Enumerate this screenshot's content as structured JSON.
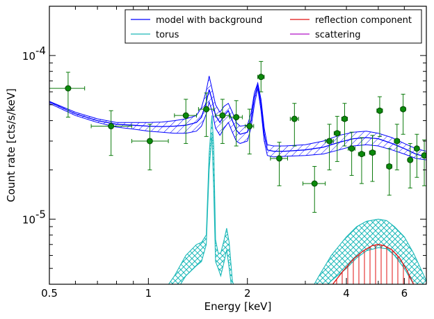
{
  "chart_data": {
    "type": "scatter",
    "title": "",
    "xlabel": "Energy [keV]",
    "ylabel": "Count rate [cts/s/keV]",
    "xscale": "log",
    "yscale": "log",
    "xlim": [
      0.5,
      7.0
    ],
    "ylim": [
      4e-06,
      0.0002
    ],
    "x_ticks": [
      {
        "value": 0.5,
        "label": "0.5"
      },
      {
        "value": 1,
        "label": "1"
      },
      {
        "value": 2,
        "label": "2"
      },
      {
        "value": 4,
        "label": "4"
      },
      {
        "value": 6,
        "label": "6"
      }
    ],
    "y_ticks": [
      {
        "value": 1e-05,
        "label": "10",
        "exp": "-5"
      },
      {
        "value": 0.0001,
        "label": "10",
        "exp": "-4"
      }
    ],
    "grid": false,
    "legend_position": "top-right",
    "legend_columns": 2,
    "colors": {
      "model": "#0000ff",
      "torus": "#1ab8b8",
      "reflection": "#e01010",
      "scattering": "#b010c8",
      "data": "#0a7a0a",
      "data_fill": "#0a8a0a"
    },
    "series": [
      {
        "name": "model with background",
        "kind": "line-band",
        "color": "#0000ff",
        "x": [
          0.5,
          0.6,
          0.7,
          0.8,
          0.9,
          1.0,
          1.1,
          1.2,
          1.3,
          1.4,
          1.45,
          1.5,
          1.53,
          1.56,
          1.6,
          1.65,
          1.7,
          1.75,
          1.8,
          1.85,
          1.9,
          2.0,
          2.05,
          2.1,
          2.15,
          2.2,
          2.25,
          2.3,
          2.4,
          2.6,
          3.0,
          3.4,
          3.8,
          4.2,
          4.6,
          5.0,
          5.5,
          6.0,
          6.5,
          7.0
        ],
        "values": [
          5.2e-05,
          4.4e-05,
          4e-05,
          3.8e-05,
          3.75e-05,
          3.7e-05,
          3.68e-05,
          3.7e-05,
          3.75e-05,
          3.9e-05,
          4.2e-05,
          5.2e-05,
          6.2e-05,
          5.4e-05,
          4.3e-05,
          3.9e-05,
          4.3e-05,
          4.6e-05,
          4e-05,
          3.5e-05,
          3.3e-05,
          3.4e-05,
          4e-05,
          5.5e-05,
          6.6e-05,
          5e-05,
          3.3e-05,
          2.65e-05,
          2.6e-05,
          2.6e-05,
          2.65e-05,
          2.75e-05,
          2.95e-05,
          3.1e-05,
          3.15e-05,
          3.1e-05,
          2.9e-05,
          2.7e-05,
          2.5e-05,
          2.4e-05
        ],
        "lower": [
          5.1e-05,
          4.3e-05,
          3.9e-05,
          3.65e-05,
          3.55e-05,
          3.45e-05,
          3.4e-05,
          3.35e-05,
          3.35e-05,
          3.45e-05,
          3.7e-05,
          4.4e-05,
          5.2e-05,
          4.6e-05,
          3.6e-05,
          3.25e-05,
          3.6e-05,
          3.9e-05,
          3.4e-05,
          3e-05,
          2.9e-05,
          3e-05,
          3.6e-05,
          5e-05,
          6.3e-05,
          4.6e-05,
          3e-05,
          2.45e-05,
          2.4e-05,
          2.42e-05,
          2.45e-05,
          2.5e-05,
          2.65e-05,
          2.8e-05,
          2.85e-05,
          2.8e-05,
          2.65e-05,
          2.5e-05,
          2.35e-05,
          2.3e-05
        ],
        "upper": [
          5.25e-05,
          4.5e-05,
          4.1e-05,
          3.9e-05,
          3.9e-05,
          3.9e-05,
          3.92e-05,
          4e-05,
          4.1e-05,
          4.3e-05,
          4.8e-05,
          6.1e-05,
          7.5e-05,
          6.3e-05,
          5e-05,
          4.5e-05,
          4.9e-05,
          5.1e-05,
          4.5e-05,
          3.9e-05,
          3.7e-05,
          3.75e-05,
          4.4e-05,
          5.9e-05,
          6.8e-05,
          5.4e-05,
          3.6e-05,
          2.85e-05,
          2.8e-05,
          2.8e-05,
          2.85e-05,
          3e-05,
          3.25e-05,
          3.4e-05,
          3.45e-05,
          3.35e-05,
          3.15e-05,
          2.9e-05,
          2.7e-05,
          2.6e-05
        ]
      },
      {
        "name": "torus",
        "kind": "band",
        "color": "#1ab8b8",
        "segments": [
          {
            "x": [
              1.1,
              1.2,
              1.3,
              1.4,
              1.45,
              1.5,
              1.53,
              1.56,
              1.58,
              1.6,
              1.63,
              1.66,
              1.7,
              1.73,
              1.76,
              1.8,
              1.85,
              1.9
            ],
            "lower": [
              3e-06,
              3.5e-06,
              4.5e-06,
              5.2e-06,
              5.5e-06,
              7e-06,
              2e-05,
              3.3e-05,
              1.5e-05,
              5.5e-06,
              5e-06,
              4.5e-06,
              5.5e-06,
              6.5e-06,
              5e-06,
              3.5e-06,
              3e-06,
              3e-06
            ],
            "upper": [
              3.5e-06,
              4.5e-06,
              6e-06,
              7e-06,
              7.2e-06,
              8e-06,
              2.5e-05,
              4.3e-05,
              2.8e-05,
              7.5e-06,
              6.2e-06,
              6.2e-06,
              7.5e-06,
              8.8e-06,
              7.2e-06,
              4.2e-06,
              3.5e-06,
              3e-06
            ]
          },
          {
            "x": [
              3.0,
              3.3,
              3.6,
              4.0,
              4.3,
              4.6,
              5.0,
              5.3,
              5.6,
              6.0,
              6.4,
              7.0
            ],
            "lower": [
              3e-06,
              3.5e-06,
              4.2e-06,
              5e-06,
              5.8e-06,
              6.4e-06,
              6.7e-06,
              6.6e-06,
              6e-06,
              5e-06,
              4e-06,
              3e-06
            ],
            "upper": [
              3.2e-06,
              4.5e-06,
              6e-06,
              7.8e-06,
              9e-06,
              9.7e-06,
              1e-05,
              9.8e-06,
              9e-06,
              7.8e-06,
              6.2e-06,
              4.2e-06
            ]
          }
        ]
      },
      {
        "name": "reflection component",
        "kind": "line-hatched",
        "color": "#e01010",
        "x": [
          3.6,
          3.9,
          4.2,
          4.5,
          4.8,
          5.0,
          5.2,
          5.5,
          5.8,
          6.1,
          6.4,
          6.6
        ],
        "values": [
          3.9e-06,
          4.8e-06,
          5.7e-06,
          6.4e-06,
          6.9e-06,
          7e-06,
          6.9e-06,
          6.5e-06,
          5.8e-06,
          4.9e-06,
          4e-06,
          3.5e-06
        ]
      },
      {
        "name": "scattering",
        "kind": "line",
        "color": "#b010c8",
        "x": [],
        "values": []
      },
      {
        "name": "data",
        "kind": "errorbar",
        "color": "#0a7a0a",
        "points": [
          {
            "x": 0.57,
            "y": 6.3e-05,
            "xerr": [
              0.07,
              0.07
            ],
            "yerr": [
              2.1e-05,
              1.6e-05
            ]
          },
          {
            "x": 0.77,
            "y": 3.7e-05,
            "xerr": [
              0.1,
              0.12
            ],
            "yerr": [
              1.25e-05,
              9e-06
            ]
          },
          {
            "x": 1.01,
            "y": 3e-05,
            "xerr": [
              0.12,
              0.14
            ],
            "yerr": [
              1e-05,
              8e-06
            ]
          },
          {
            "x": 1.3,
            "y": 4.3e-05,
            "xerr": [
              0.1,
              0.1
            ],
            "yerr": [
              1.4e-05,
              1.1e-05
            ]
          },
          {
            "x": 1.5,
            "y": 4.7e-05,
            "xerr": [
              0.08,
              0.08
            ],
            "yerr": [
              1.5e-05,
              1.2e-05
            ]
          },
          {
            "x": 1.68,
            "y": 4.3e-05,
            "xerr": [
              0.08,
              0.08
            ],
            "yerr": [
              1.4e-05,
              1.1e-05
            ]
          },
          {
            "x": 1.85,
            "y": 4.2e-05,
            "xerr": [
              0.08,
              0.08
            ],
            "yerr": [
              1.4e-05,
              1.1e-05
            ]
          },
          {
            "x": 2.03,
            "y": 3.7e-05,
            "xerr": [
              0.06,
              0.06
            ],
            "yerr": [
              1.2e-05,
              1e-05
            ]
          },
          {
            "x": 2.2,
            "y": 7.4e-05,
            "xerr": [
              0.05,
              0.05
            ],
            "yerr": [
              1.4e-05,
              1.8e-05
            ]
          },
          {
            "x": 2.5,
            "y": 2.35e-05,
            "xerr": [
              0.15,
              0.15
            ],
            "yerr": [
              7.5e-06,
              6e-06
            ]
          },
          {
            "x": 2.78,
            "y": 4.1e-05,
            "xerr": [
              0.08,
              0.08
            ],
            "yerr": [
              1.3e-05,
              1e-05
            ]
          },
          {
            "x": 3.2,
            "y": 1.65e-05,
            "xerr": [
              0.25,
              0.25
            ],
            "yerr": [
              5.5e-06,
              4.5e-06
            ]
          },
          {
            "x": 3.55,
            "y": 3e-05,
            "xerr": [
              0.1,
              0.1
            ],
            "yerr": [
              1e-05,
              8e-06
            ]
          },
          {
            "x": 3.75,
            "y": 3.35e-05,
            "xerr": [
              0.08,
              0.08
            ],
            "yerr": [
              1.1e-05,
              9e-06
            ]
          },
          {
            "x": 3.95,
            "y": 4.1e-05,
            "xerr": [
              0.08,
              0.08
            ],
            "yerr": [
              1.3e-05,
              1e-05
            ]
          },
          {
            "x": 4.15,
            "y": 2.7e-05,
            "xerr": [
              0.1,
              0.1
            ],
            "yerr": [
              8.5e-06,
              7e-06
            ]
          },
          {
            "x": 4.45,
            "y": 2.5e-05,
            "xerr": [
              0.1,
              0.1
            ],
            "yerr": [
              8.5e-06,
              6.5e-06
            ]
          },
          {
            "x": 4.8,
            "y": 2.55e-05,
            "xerr": [
              0.1,
              0.1
            ],
            "yerr": [
              8.5e-06,
              7e-06
            ]
          },
          {
            "x": 5.05,
            "y": 4.6e-05,
            "xerr": [
              0.1,
              0.1
            ],
            "yerr": [
              1.4e-05,
              1e-05
            ]
          },
          {
            "x": 5.4,
            "y": 2.1e-05,
            "xerr": [
              0.1,
              0.1
            ],
            "yerr": [
              7e-06,
              6e-06
            ]
          },
          {
            "x": 5.7,
            "y": 3e-05,
            "xerr": [
              0.1,
              0.1
            ],
            "yerr": [
              1e-05,
              8e-06
            ]
          },
          {
            "x": 5.95,
            "y": 4.7e-05,
            "xerr": [
              0.1,
              0.1
            ],
            "yerr": [
              1.4e-05,
              1.1e-05
            ]
          },
          {
            "x": 6.25,
            "y": 2.3e-05,
            "xerr": [
              0.1,
              0.1
            ],
            "yerr": [
              7.5e-06,
              6e-06
            ]
          },
          {
            "x": 6.55,
            "y": 2.7e-05,
            "xerr": [
              0.1,
              0.1
            ],
            "yerr": [
              9e-06,
              6e-06
            ]
          },
          {
            "x": 6.9,
            "y": 2.45e-05,
            "xerr": [
              0.1,
              0.1
            ],
            "yerr": [
              8.5e-06,
              6e-06
            ]
          }
        ]
      }
    ],
    "legend": [
      {
        "label": "model with background",
        "color": "#0000ff"
      },
      {
        "label": "reflection component",
        "color": "#e01010"
      },
      {
        "label": "torus",
        "color": "#1ab8b8"
      },
      {
        "label": "scattering",
        "color": "#b010c8"
      }
    ]
  }
}
